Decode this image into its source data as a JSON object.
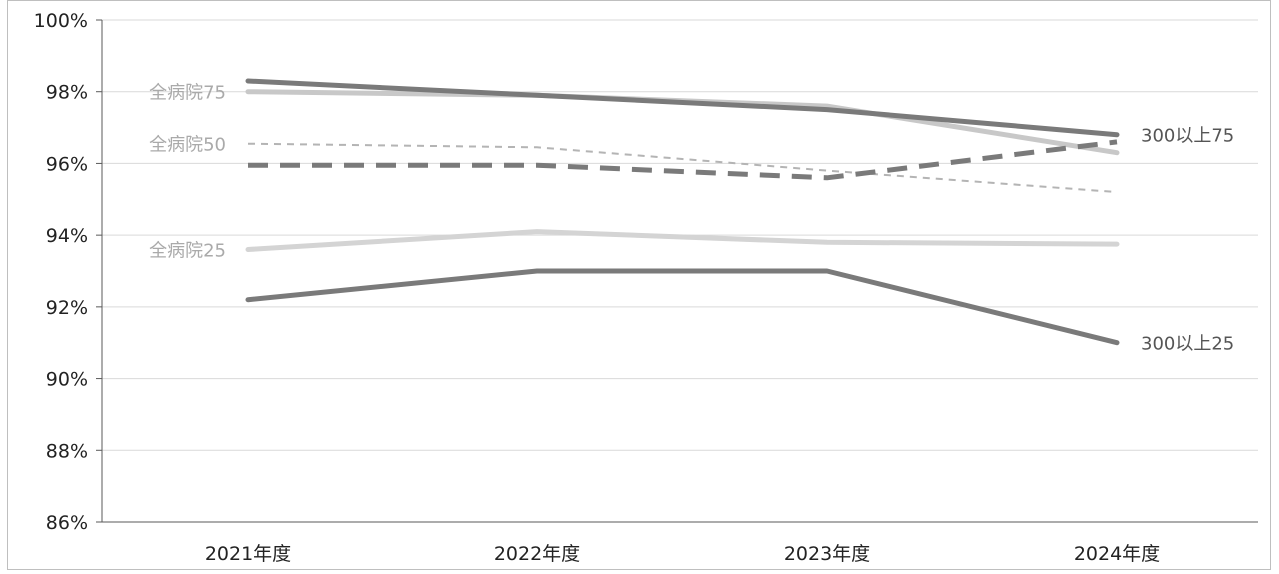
{
  "chart_data": {
    "type": "line",
    "categories": [
      "2021年度",
      "2022年度",
      "2023年度",
      "2024年度"
    ],
    "ylim": [
      86,
      100
    ],
    "yticks": [
      86,
      88,
      90,
      92,
      94,
      96,
      98,
      100
    ],
    "ytick_labels": [
      "86%",
      "88%",
      "90%",
      "92%",
      "94%",
      "96%",
      "98%",
      "100%"
    ],
    "grid": true,
    "series": [
      {
        "name": "全病院75",
        "values": [
          98.0,
          97.9,
          97.6,
          96.3
        ],
        "color": "#c8c8c8",
        "dash": "solid",
        "width": 5,
        "label_side": "left"
      },
      {
        "name": "全病院50",
        "values": [
          96.55,
          96.45,
          95.8,
          95.2
        ],
        "color": "#b4b4b4",
        "dash": "short",
        "width": 2,
        "label_side": "left"
      },
      {
        "name": "全病院25",
        "values": [
          93.6,
          94.1,
          93.8,
          93.75
        ],
        "color": "#d4d4d4",
        "dash": "solid",
        "width": 5,
        "label_side": "left"
      },
      {
        "name": "",
        "values": [
          95.95,
          95.95,
          95.6,
          96.6
        ],
        "color": "#7a7a7a",
        "dash": "long",
        "width": 5,
        "label_side": "none"
      },
      {
        "name": "300以上75",
        "values": [
          98.3,
          97.9,
          97.5,
          96.8
        ],
        "color": "#7a7a7a",
        "dash": "solid",
        "width": 5,
        "label_side": "right"
      },
      {
        "name": "300以上25",
        "values": [
          92.2,
          93.0,
          93.0,
          91.0
        ],
        "color": "#7a7a7a",
        "dash": "solid",
        "width": 5,
        "label_side": "right"
      }
    ],
    "label_colors": {
      "left": "#aaaaaa",
      "right": "#555555"
    }
  }
}
